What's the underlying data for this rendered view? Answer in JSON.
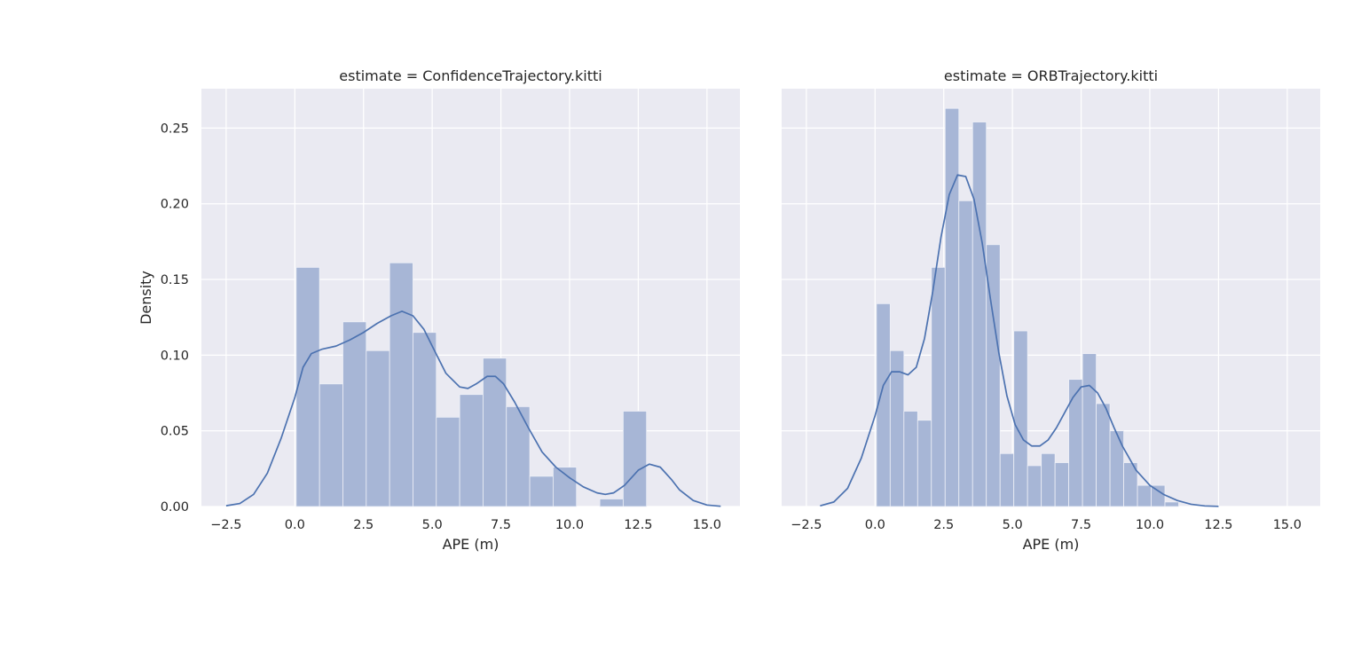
{
  "chart_data": [
    {
      "type": "histogram",
      "title": "estimate = ConfidenceTrajectory.kitti",
      "xlabel": "APE (m)",
      "ylabel": "Density",
      "xlim": [
        -3.4,
        16.2
      ],
      "ylim": [
        0,
        0.276
      ],
      "xticks": [
        -2.5,
        0.0,
        2.5,
        5.0,
        7.5,
        10.0,
        12.5,
        15.0
      ],
      "xtick_labels": [
        "−2.5",
        "0.0",
        "2.5",
        "5.0",
        "7.5",
        "10.0",
        "12.5",
        "15.0"
      ],
      "yticks": [
        0.0,
        0.05,
        0.1,
        0.15,
        0.2,
        0.25
      ],
      "ytick_labels": [
        "0.00",
        "0.05",
        "0.10",
        "0.15",
        "0.20",
        "0.25"
      ],
      "grid": true,
      "bar_color": "#a7b6d6",
      "line_color": "#4c72b0",
      "bins": [
        {
          "x0": 0.05,
          "x1": 0.9,
          "density": 0.158
        },
        {
          "x0": 0.9,
          "x1": 1.75,
          "density": 0.081
        },
        {
          "x0": 1.75,
          "x1": 2.6,
          "density": 0.122
        },
        {
          "x0": 2.6,
          "x1": 3.45,
          "density": 0.103
        },
        {
          "x0": 3.45,
          "x1": 4.3,
          "density": 0.161
        },
        {
          "x0": 4.3,
          "x1": 5.15,
          "density": 0.115
        },
        {
          "x0": 5.15,
          "x1": 6.0,
          "density": 0.059
        },
        {
          "x0": 6.0,
          "x1": 6.85,
          "density": 0.074
        },
        {
          "x0": 6.85,
          "x1": 7.7,
          "density": 0.098
        },
        {
          "x0": 7.7,
          "x1": 8.55,
          "density": 0.066
        },
        {
          "x0": 8.55,
          "x1": 9.4,
          "density": 0.02
        },
        {
          "x0": 9.4,
          "x1": 10.25,
          "density": 0.026
        },
        {
          "x0": 10.25,
          "x1": 11.1,
          "density": 0.0
        },
        {
          "x0": 11.1,
          "x1": 11.95,
          "density": 0.005
        },
        {
          "x0": 11.95,
          "x1": 12.8,
          "density": 0.063
        }
      ],
      "kde": {
        "x": [
          -2.5,
          -2.0,
          -1.5,
          -1.0,
          -0.5,
          0.0,
          0.3,
          0.6,
          1.0,
          1.5,
          2.0,
          2.5,
          3.0,
          3.5,
          3.9,
          4.3,
          4.7,
          5.0,
          5.5,
          6.0,
          6.3,
          6.6,
          7.0,
          7.3,
          7.6,
          8.0,
          8.5,
          9.0,
          9.5,
          10.0,
          10.5,
          11.0,
          11.3,
          11.6,
          12.0,
          12.5,
          12.9,
          13.3,
          13.7,
          14.0,
          14.5,
          15.0,
          15.5
        ],
        "y": [
          0.0005,
          0.002,
          0.008,
          0.022,
          0.045,
          0.072,
          0.092,
          0.101,
          0.104,
          0.106,
          0.11,
          0.115,
          0.121,
          0.126,
          0.129,
          0.126,
          0.117,
          0.106,
          0.088,
          0.079,
          0.078,
          0.081,
          0.086,
          0.086,
          0.081,
          0.069,
          0.052,
          0.036,
          0.026,
          0.019,
          0.013,
          0.009,
          0.008,
          0.009,
          0.014,
          0.024,
          0.028,
          0.026,
          0.018,
          0.011,
          0.004,
          0.001,
          0.0002
        ]
      }
    },
    {
      "type": "histogram",
      "title": "estimate = ORBTrajectory.kitti",
      "xlabel": "APE (m)",
      "ylabel": "",
      "xlim": [
        -3.4,
        16.2
      ],
      "ylim": [
        0,
        0.276
      ],
      "xticks": [
        -2.5,
        0.0,
        2.5,
        5.0,
        7.5,
        10.0,
        12.5,
        15.0
      ],
      "xtick_labels": [
        "−2.5",
        "0.0",
        "2.5",
        "5.0",
        "7.5",
        "10.0",
        "12.5",
        "15.0"
      ],
      "yticks": [
        0.0,
        0.05,
        0.1,
        0.15,
        0.2,
        0.25
      ],
      "ytick_labels": [],
      "grid": true,
      "bar_color": "#a7b6d6",
      "line_color": "#4c72b0",
      "bins": [
        {
          "x0": 0.05,
          "x1": 0.55,
          "density": 0.134
        },
        {
          "x0": 0.55,
          "x1": 1.05,
          "density": 0.103
        },
        {
          "x0": 1.05,
          "x1": 1.55,
          "density": 0.063
        },
        {
          "x0": 1.55,
          "x1": 2.05,
          "density": 0.057
        },
        {
          "x0": 2.05,
          "x1": 2.55,
          "density": 0.158
        },
        {
          "x0": 2.55,
          "x1": 3.05,
          "density": 0.263
        },
        {
          "x0": 3.05,
          "x1": 3.55,
          "density": 0.202
        },
        {
          "x0": 3.55,
          "x1": 4.05,
          "density": 0.254
        },
        {
          "x0": 4.05,
          "x1": 4.55,
          "density": 0.173
        },
        {
          "x0": 4.55,
          "x1": 5.05,
          "density": 0.035
        },
        {
          "x0": 5.05,
          "x1": 5.55,
          "density": 0.116
        },
        {
          "x0": 5.55,
          "x1": 6.05,
          "density": 0.027
        },
        {
          "x0": 6.05,
          "x1": 6.55,
          "density": 0.035
        },
        {
          "x0": 6.55,
          "x1": 7.05,
          "density": 0.029
        },
        {
          "x0": 7.05,
          "x1": 7.55,
          "density": 0.084
        },
        {
          "x0": 7.55,
          "x1": 8.05,
          "density": 0.101
        },
        {
          "x0": 8.05,
          "x1": 8.55,
          "density": 0.068
        },
        {
          "x0": 8.55,
          "x1": 9.05,
          "density": 0.05
        },
        {
          "x0": 9.05,
          "x1": 9.55,
          "density": 0.029
        },
        {
          "x0": 9.55,
          "x1": 10.05,
          "density": 0.014
        },
        {
          "x0": 10.05,
          "x1": 10.55,
          "density": 0.014
        },
        {
          "x0": 10.55,
          "x1": 11.05,
          "density": 0.003
        }
      ],
      "kde": {
        "x": [
          -2.0,
          -1.5,
          -1.0,
          -0.5,
          0.0,
          0.3,
          0.6,
          0.9,
          1.2,
          1.5,
          1.8,
          2.1,
          2.4,
          2.7,
          3.0,
          3.3,
          3.6,
          3.9,
          4.2,
          4.5,
          4.8,
          5.1,
          5.4,
          5.7,
          6.0,
          6.3,
          6.6,
          6.9,
          7.2,
          7.5,
          7.8,
          8.1,
          8.4,
          8.7,
          9.0,
          9.5,
          10.0,
          10.5,
          11.0,
          11.5,
          12.0,
          12.5
        ],
        "y": [
          0.0005,
          0.003,
          0.012,
          0.032,
          0.06,
          0.08,
          0.089,
          0.089,
          0.087,
          0.092,
          0.111,
          0.142,
          0.178,
          0.206,
          0.219,
          0.218,
          0.203,
          0.174,
          0.137,
          0.102,
          0.073,
          0.054,
          0.044,
          0.04,
          0.04,
          0.044,
          0.052,
          0.062,
          0.072,
          0.079,
          0.08,
          0.075,
          0.065,
          0.052,
          0.04,
          0.024,
          0.014,
          0.008,
          0.004,
          0.0015,
          0.0004,
          0.0001
        ]
      }
    }
  ]
}
